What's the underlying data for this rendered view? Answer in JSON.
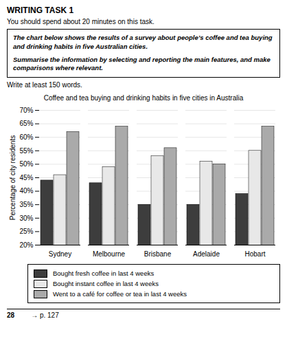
{
  "chart_data": {
    "type": "bar",
    "title": "Coffee and tea buying and drinking habits in five cities in Australia",
    "ylabel": "Percentage of city residents",
    "annotations": [
      "WRITING TASK 1",
      "You should spend about 20 minutes on this task.",
      "The chart below shows the results of a survey about people’s coffee and tea buying and drinking habits in five Australian cities.",
      "Summarise the information by selecting and reporting the main features, and make comparisons where relevant.",
      "Write at least 150 words.",
      "28",
      "→  p. 127"
    ],
    "categories": [
      "Sydney",
      "Melbourne",
      "Brisbane",
      "Adelaide",
      "Hobart"
    ],
    "series": [
      {
        "name": "Bought fresh coffee in last 4 weeks",
        "color": "#3d3d3d",
        "values": [
          44,
          43,
          35,
          35,
          39
        ]
      },
      {
        "name": "Bought instant coffee in last 4 weeks",
        "color": "#e8e8e8",
        "values": [
          46,
          49,
          53,
          51,
          55
        ]
      },
      {
        "name": "Went to a café for coffee or tea in last 4 weeks",
        "color": "#aaaaaa",
        "values": [
          62,
          64,
          56,
          50,
          64
        ]
      }
    ],
    "ylim": [
      20,
      70
    ],
    "yticks": [
      {
        "value": 20,
        "label": "20%"
      },
      {
        "value": 25,
        "label": "25%"
      },
      {
        "value": 30,
        "label": "30%"
      },
      {
        "value": 35,
        "label": "35%"
      },
      {
        "value": 40,
        "label": "40%"
      },
      {
        "value": 45,
        "label": "45%"
      },
      {
        "value": 50,
        "label": "50%"
      },
      {
        "value": 55,
        "label": "55%"
      },
      {
        "value": 60,
        "label": "60%"
      },
      {
        "value": 65,
        "label": "65%"
      },
      {
        "value": 70,
        "label": "70%"
      }
    ],
    "grid": true,
    "legend": "bottom"
  }
}
